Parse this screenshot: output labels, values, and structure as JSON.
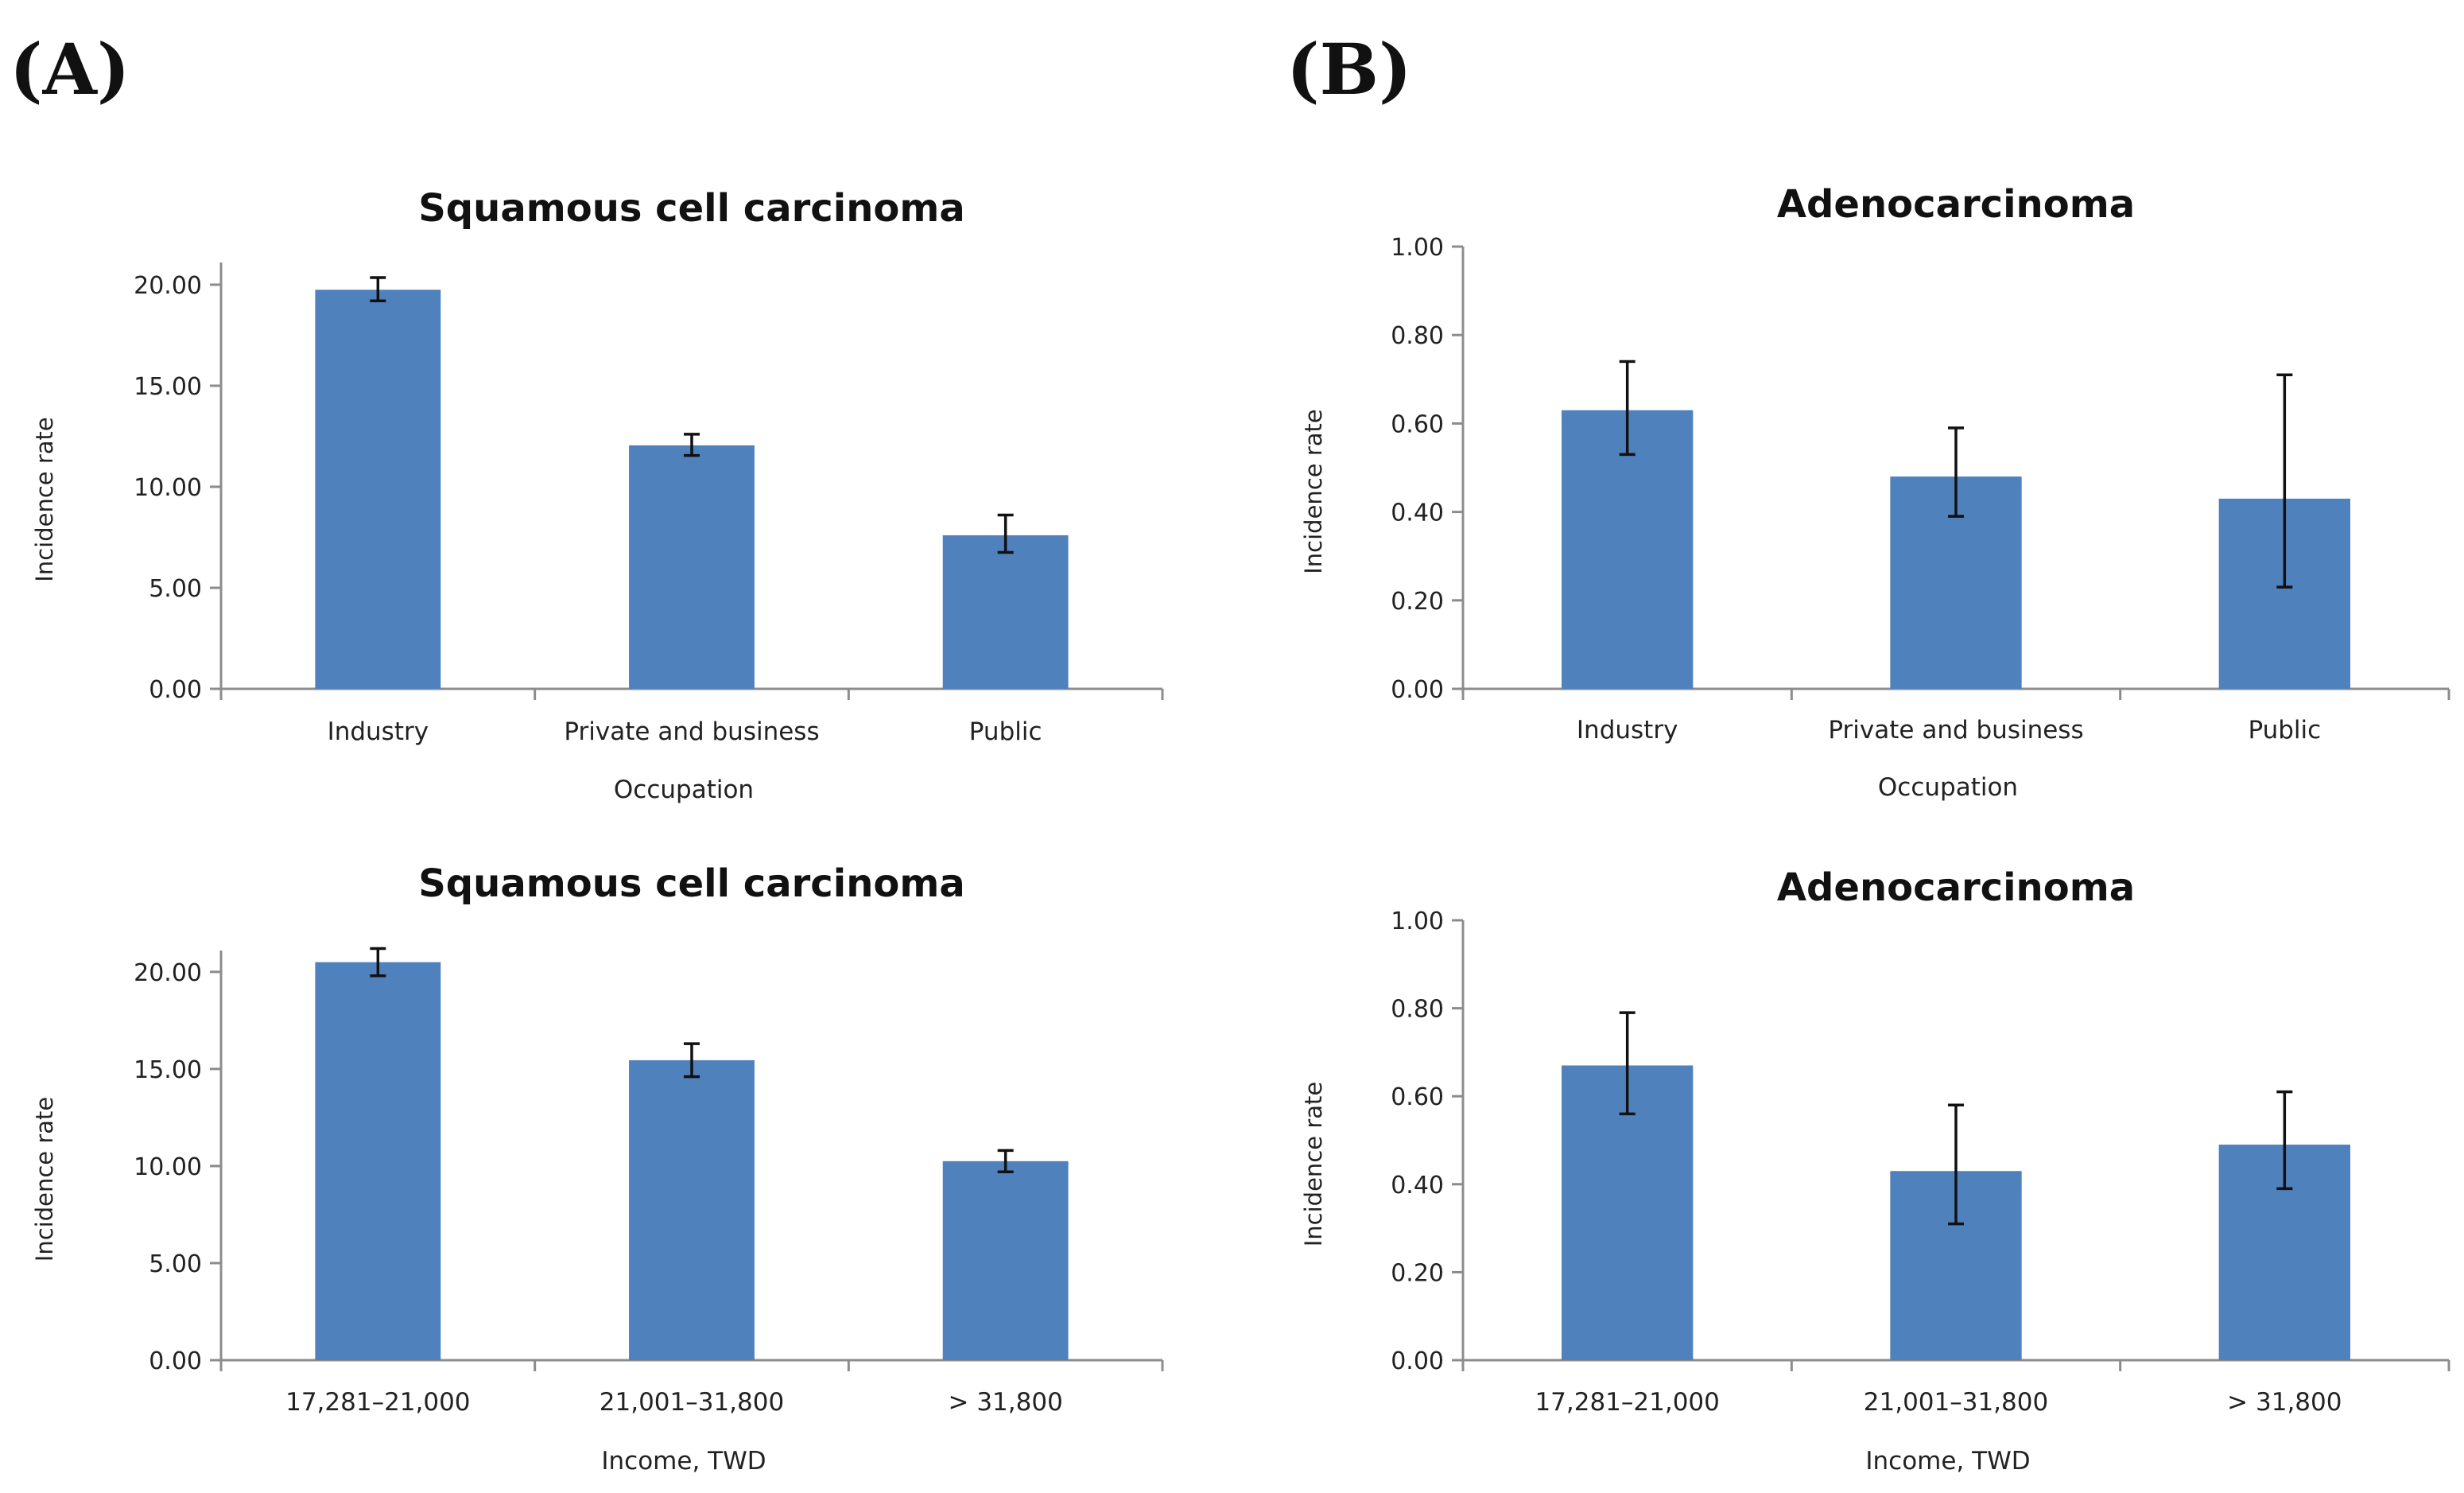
{
  "panel_labels": {
    "a": "(A)",
    "b": "(B)"
  },
  "colors": {
    "bar": "#4f81bd",
    "axis": "#8c8c8c",
    "error": "#111111"
  },
  "chart_data": [
    {
      "type": "bar",
      "panel": "A",
      "title": "Squamous cell carcinoma",
      "xlabel": "Occupation",
      "ylabel": "Incidence rate",
      "categories": [
        "Industry",
        "Private and business",
        "Public"
      ],
      "values": [
        19.75,
        12.05,
        7.6
      ],
      "error_low": [
        19.2,
        11.55,
        6.75
      ],
      "error_high": [
        20.35,
        12.6,
        8.6
      ],
      "ylim": [
        0,
        20
      ],
      "yticks": [
        "0.00",
        "5.00",
        "10.00",
        "15.00",
        "20.00"
      ],
      "grid": false
    },
    {
      "type": "bar",
      "panel": "B",
      "title": "Adenocarcinoma",
      "xlabel": "Occupation",
      "ylabel": "Incidence rate",
      "categories": [
        "Industry",
        "Private and business",
        "Public"
      ],
      "values": [
        0.63,
        0.48,
        0.43
      ],
      "error_low": [
        0.53,
        0.39,
        0.23
      ],
      "error_high": [
        0.74,
        0.59,
        0.71
      ],
      "ylim": [
        0,
        1
      ],
      "yticks": [
        "0.00",
        "0.20",
        "0.40",
        "0.60",
        "0.80",
        "1.00"
      ],
      "grid": false
    },
    {
      "type": "bar",
      "panel": "A",
      "title": "Squamous cell carcinoma",
      "xlabel": "Income, TWD",
      "ylabel": "Incidence rate",
      "categories": [
        "17,281–21,000",
        "21,001–31,800",
        "> 31,800"
      ],
      "values": [
        20.5,
        15.45,
        10.25
      ],
      "error_low": [
        19.8,
        14.6,
        9.7
      ],
      "error_high": [
        21.2,
        16.3,
        10.8
      ],
      "ylim": [
        0,
        20
      ],
      "yticks": [
        "0.00",
        "5.00",
        "10.00",
        "15.00",
        "20.00"
      ],
      "grid": false
    },
    {
      "type": "bar",
      "panel": "B",
      "title": "Adenocarcinoma",
      "xlabel": "Income, TWD",
      "ylabel": "Incidence rate",
      "categories": [
        "17,281–21,000",
        "21,001–31,800",
        "> 31,800"
      ],
      "values": [
        0.67,
        0.43,
        0.49
      ],
      "error_low": [
        0.56,
        0.31,
        0.39
      ],
      "error_high": [
        0.79,
        0.58,
        0.61
      ],
      "ylim": [
        0,
        1
      ],
      "yticks": [
        "0.00",
        "0.20",
        "0.40",
        "0.60",
        "0.80",
        "1.00"
      ],
      "grid": false
    }
  ]
}
